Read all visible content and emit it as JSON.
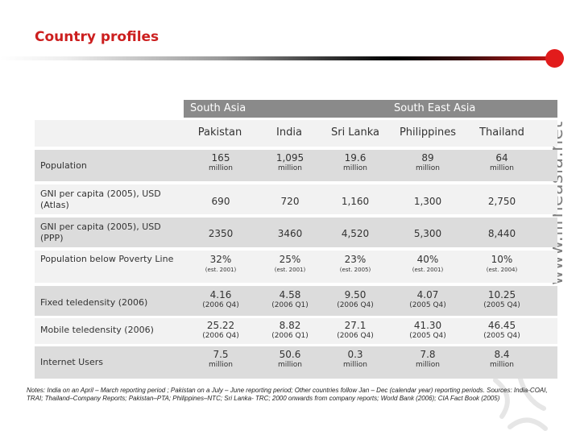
{
  "title": "Country profiles",
  "watermark": "www.lirneasia.net",
  "colors": {
    "title": "#cc1f1f",
    "dot": "#e21c1c",
    "header_band": "#8a8a8a",
    "row_band": "#dcdcdc"
  },
  "groups": [
    "South Asia",
    "South East Asia"
  ],
  "columns": [
    "Pakistan",
    "India",
    "Sri Lanka",
    "Philippines",
    "Thailand"
  ],
  "rows": [
    {
      "label": "Population",
      "cells": [
        {
          "v": "165",
          "s": "million"
        },
        {
          "v": "1,095",
          "s": "million"
        },
        {
          "v": "19.6",
          "s": "million"
        },
        {
          "v": "89",
          "s": "million"
        },
        {
          "v": "64",
          "s": "million"
        }
      ]
    },
    {
      "label": "GNI per capita (2005), USD (Atlas)",
      "cells": [
        {
          "v": "690"
        },
        {
          "v": "720"
        },
        {
          "v": "1,160"
        },
        {
          "v": "1,300"
        },
        {
          "v": "2,750"
        }
      ]
    },
    {
      "label": "GNI per capita (2005), USD (PPP)",
      "cells": [
        {
          "v": "2350"
        },
        {
          "v": "3460"
        },
        {
          "v": "4,520"
        },
        {
          "v": "5,300"
        },
        {
          "v": "8,440"
        }
      ]
    },
    {
      "label": "Population below Poverty Line",
      "cells": [
        {
          "v": "32%",
          "s": "(est. 2001)"
        },
        {
          "v": "25%",
          "s": "(est. 2001)"
        },
        {
          "v": "23%",
          "s": "(est. 2005)"
        },
        {
          "v": "40%",
          "s": "(est. 2001)"
        },
        {
          "v": "10%",
          "s": "(est. 2004)"
        }
      ]
    },
    {
      "label": "Fixed teledensity (2006)",
      "cells": [
        {
          "v": "4.16",
          "s": "(2006 Q4)"
        },
        {
          "v": "4.58",
          "s": "(2006 Q1)"
        },
        {
          "v": "9.50",
          "s": "(2006 Q4)"
        },
        {
          "v": "4.07",
          "s": "(2005 Q4)"
        },
        {
          "v": "10.25",
          "s": "(2005 Q4)"
        }
      ]
    },
    {
      "label": "Mobile teledensity (2006)",
      "cells": [
        {
          "v": "25.22",
          "s": "(2006 Q4)"
        },
        {
          "v": "8.82",
          "s": "(2006 Q1)"
        },
        {
          "v": "27.1",
          "s": "(2006 Q4)"
        },
        {
          "v": "41.30",
          "s": "(2005 Q4)"
        },
        {
          "v": "46.45",
          "s": "(2005 Q4)"
        }
      ]
    },
    {
      "label": "Internet Users",
      "cells": [
        {
          "v": "7.5",
          "s": "million"
        },
        {
          "v": "50.6",
          "s": "million"
        },
        {
          "v": "0.3",
          "s": "million"
        },
        {
          "v": "7.8",
          "s": "million"
        },
        {
          "v": "8.4",
          "s": "million"
        }
      ]
    }
  ],
  "notes": "Notes: India on an April – March reporting period ; Pakistan on a July – June reporting period; Other countries follow Jan – Dec (calendar year) reporting periods. Sources: India-COAI, TRAI; Thailand–Company Reports; Pakistan–PTA; Philippines–NTC; Sri Lanka- TRC; 2000 onwards from company reports; World Bank (2006); CIA Fact Book (2005)"
}
